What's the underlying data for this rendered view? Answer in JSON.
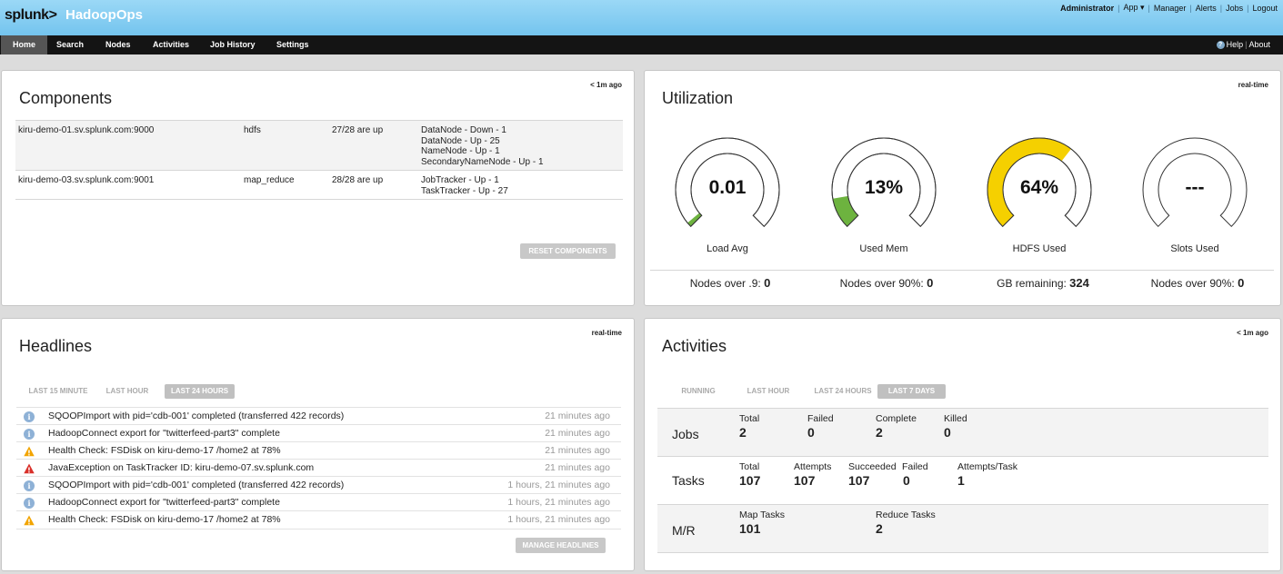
{
  "header": {
    "logo": "splunk>",
    "app_name": "HadoopOps",
    "user": "Administrator",
    "links": [
      "App ▾",
      "Manager",
      "Alerts",
      "Jobs",
      "Logout"
    ]
  },
  "nav": {
    "items": [
      "Home",
      "Search",
      "Nodes",
      "Activities",
      "Job History",
      "Settings"
    ],
    "help": "Help",
    "about": "About"
  },
  "components": {
    "title": "Components",
    "updated": "< 1m ago",
    "rows": [
      {
        "host": "kiru-demo-01.sv.splunk.com:9000",
        "type": "hdfs",
        "summary": "27/28 are up",
        "statuses": [
          "DataNode - Down - 1",
          "DataNode - Up - 25",
          "NameNode - Up - 1",
          "SecondaryNameNode - Up - 1"
        ]
      },
      {
        "host": "kiru-demo-03.sv.splunk.com:9001",
        "type": "map_reduce",
        "summary": "28/28 are up",
        "statuses": [
          "JobTracker - Up - 1",
          "TaskTracker - Up - 27"
        ]
      }
    ],
    "reset_label": "RESET COMPONENTS"
  },
  "utilization": {
    "title": "Utilization",
    "updated": "real-time",
    "gauges": [
      {
        "value": "0.01",
        "label": "Load Avg",
        "fill": 0.02,
        "color": "#6db33f"
      },
      {
        "value": "13%",
        "label": "Used Mem",
        "fill": 0.13,
        "color": "#6db33f"
      },
      {
        "value": "64%",
        "label": "HDFS Used",
        "fill": 0.64,
        "color": "#f5d000"
      },
      {
        "value": "---",
        "label": "Slots Used",
        "fill": 0,
        "color": "#6db33f"
      }
    ],
    "footer": [
      {
        "label": "Nodes over .9:",
        "value": "0"
      },
      {
        "label": "Nodes over 90%:",
        "value": "0"
      },
      {
        "label": "GB remaining:",
        "value": "324"
      },
      {
        "label": "Nodes over 90%:",
        "value": "0"
      }
    ]
  },
  "headlines": {
    "title": "Headlines",
    "updated": "real-time",
    "tabs": [
      "LAST 15 MINUTE",
      "LAST HOUR",
      "LAST 24 HOURS"
    ],
    "items": [
      {
        "icon": "info-icon",
        "text": "SQOOPImport with pid='cdb-001' completed (transferred 422 records)",
        "ago": "21 minutes ago"
      },
      {
        "icon": "info-icon",
        "text": "HadoopConnect export for \"twitterfeed-part3\" complete",
        "ago": "21 minutes ago"
      },
      {
        "icon": "warning-icon",
        "text": "Health Check: FSDisk on kiru-demo-17 /home2 at 78%",
        "ago": "21 minutes ago"
      },
      {
        "icon": "error-icon",
        "text": "JavaException on TaskTracker ID: kiru-demo-07.sv.splunk.com",
        "ago": "21 minutes ago"
      },
      {
        "icon": "info-icon",
        "text": "SQOOPImport with pid='cdb-001' completed (transferred 422 records)",
        "ago": "1 hours, 21 minutes ago"
      },
      {
        "icon": "info-icon",
        "text": "HadoopConnect export for \"twitterfeed-part3\" complete",
        "ago": "1 hours, 21 minutes ago"
      },
      {
        "icon": "warning-icon",
        "text": "Health Check: FSDisk on kiru-demo-17 /home2 at 78%",
        "ago": "1 hours, 21 minutes ago"
      }
    ],
    "manage_label": "MANAGE HEADLINES"
  },
  "activities": {
    "title": "Activities",
    "updated": "< 1m ago",
    "tabs": [
      "RUNNING",
      "LAST HOUR",
      "LAST 24 HOURS",
      "LAST 7 DAYS"
    ],
    "jobs": {
      "name": "Jobs",
      "total_label": "Total",
      "total": "2",
      "failed_label": "Failed",
      "failed": "0",
      "complete_label": "Complete",
      "complete": "2",
      "killed_label": "Killed",
      "killed": "0"
    },
    "tasks": {
      "name": "Tasks",
      "total_label": "Total",
      "total": "107",
      "attempts_label": "Attempts",
      "attempts": "107",
      "succeeded_label": "Succeeded",
      "succeeded": "107",
      "failed_label": "Failed",
      "failed": "0",
      "apt_label": "Attempts/Task",
      "apt": "1"
    },
    "mr": {
      "name": "M/R",
      "map_label": "Map Tasks",
      "map": "101",
      "reduce_label": "Reduce Tasks",
      "reduce": "2"
    }
  }
}
